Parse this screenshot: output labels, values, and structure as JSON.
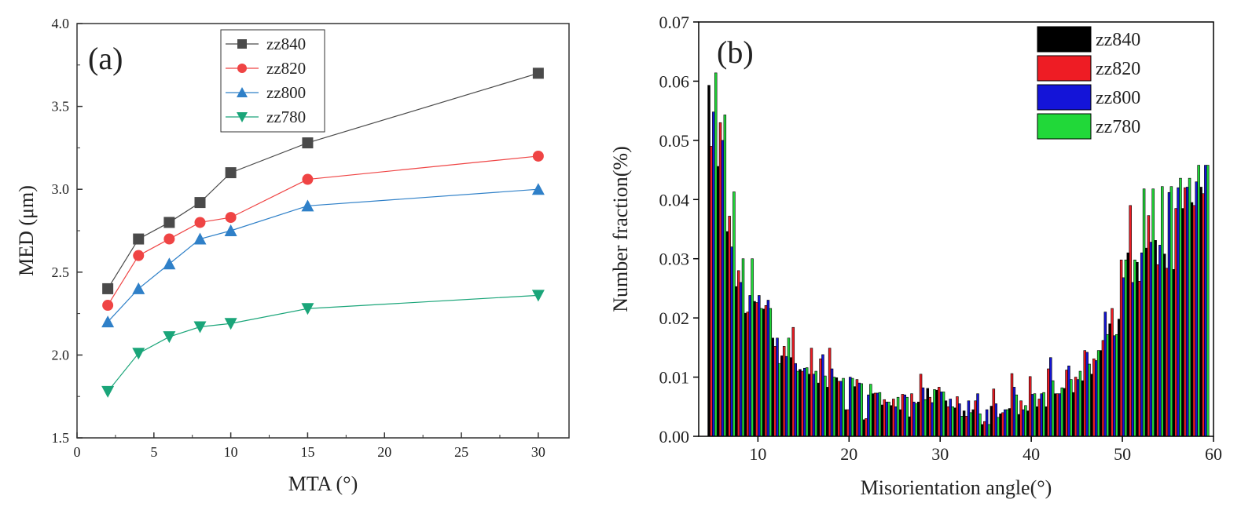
{
  "chart_data": [
    {
      "type": "line",
      "panel_label": "(a)",
      "xlabel": "MTA (°)",
      "ylabel": "MED (μm)",
      "xlim": [
        0,
        32
      ],
      "ylim": [
        1.5,
        4.0
      ],
      "x_ticks": [
        "0",
        "5",
        "10",
        "15",
        "20",
        "25",
        "30"
      ],
      "y_ticks": [
        "1.5",
        "2.0",
        "2.5",
        "3.0",
        "3.5",
        "4.0"
      ],
      "x": [
        2,
        4,
        6,
        8,
        10,
        15,
        30
      ],
      "legend_position": "top-center",
      "grid": false,
      "series": [
        {
          "name": "zz840",
          "marker": "square",
          "color": "#4a4a4a",
          "values": [
            2.4,
            2.7,
            2.8,
            2.92,
            3.1,
            3.28,
            3.7
          ]
        },
        {
          "name": "zz820",
          "marker": "circle",
          "color": "#ef4444",
          "values": [
            2.3,
            2.6,
            2.7,
            2.8,
            2.83,
            3.06,
            3.2
          ]
        },
        {
          "name": "zz800",
          "marker": "triangle-up",
          "color": "#2f80c8",
          "values": [
            2.2,
            2.4,
            2.55,
            2.7,
            2.75,
            2.9,
            3.0
          ]
        },
        {
          "name": "zz780",
          "marker": "triangle-down",
          "color": "#1aa579",
          "values": [
            1.78,
            2.01,
            2.11,
            2.17,
            2.19,
            2.28,
            2.36
          ]
        }
      ]
    },
    {
      "type": "bar",
      "panel_label": "(b)",
      "xlabel": "Misorientation angle(°)",
      "ylabel": "Number fraction(%)",
      "xlim": [
        3.5,
        60
      ],
      "ylim": [
        0,
        0.07
      ],
      "x_ticks": [
        "10",
        "20",
        "30",
        "40",
        "50",
        "60"
      ],
      "y_ticks": [
        "0.00",
        "0.01",
        "0.02",
        "0.03",
        "0.04",
        "0.05",
        "0.06",
        "0.07"
      ],
      "categories": [
        5,
        6,
        7,
        8,
        9,
        10,
        11,
        12,
        13,
        14,
        15,
        16,
        17,
        18,
        19,
        20,
        21,
        22,
        23,
        24,
        25,
        26,
        27,
        28,
        29,
        30,
        31,
        32,
        33,
        34,
        35,
        36,
        37,
        38,
        39,
        40,
        41,
        42,
        43,
        44,
        45,
        46,
        47,
        48,
        49,
        50,
        51,
        52,
        53,
        54,
        55,
        56,
        57,
        58,
        59
      ],
      "legend_position": "top-right",
      "grid": false,
      "series": [
        {
          "name": "zz840",
          "color": "#000000",
          "values": [
            0.0593,
            0.0456,
            0.0346,
            0.0253,
            0.0208,
            0.0228,
            0.0215,
            0.0166,
            0.0136,
            0.0133,
            0.0113,
            0.0105,
            0.009,
            0.0083,
            0.0099,
            0.0045,
            0.0084,
            0.0028,
            0.0072,
            0.0053,
            0.0052,
            0.0045,
            0.0033,
            0.0058,
            0.0081,
            0.0078,
            0.006,
            0.0048,
            0.0043,
            0.0045,
            0.002,
            0.0051,
            0.0038,
            0.0047,
            0.0037,
            0.0043,
            0.005,
            0.005,
            0.0072,
            0.0081,
            0.0074,
            0.0094,
            0.0105,
            0.0145,
            0.019,
            0.0198,
            0.031,
            0.0294,
            0.0318,
            0.0331,
            0.0308,
            0.0282,
            0.0385,
            0.0395,
            0.0421
          ]
        },
        {
          "name": "zz820",
          "color": "#ee1c24",
          "values": [
            0.049,
            0.053,
            0.0372,
            0.028,
            0.021,
            0.0226,
            0.0221,
            0.0152,
            0.0152,
            0.0184,
            0.011,
            0.0149,
            0.0131,
            0.0149,
            0.0093,
            0.0045,
            0.0096,
            0.003,
            0.0073,
            0.0062,
            0.0063,
            0.0071,
            0.0072,
            0.0105,
            0.0066,
            0.0083,
            0.005,
            0.0067,
            0.0034,
            0.006,
            0.0025,
            0.008,
            0.004,
            0.0106,
            0.006,
            0.0101,
            0.0063,
            0.0114,
            0.0072,
            0.0112,
            0.01,
            0.0145,
            0.0131,
            0.0162,
            0.0216,
            0.0298,
            0.039,
            0.0262,
            0.0373,
            0.029,
            0.0284,
            0.0385,
            0.042,
            0.039,
            0.041
          ]
        },
        {
          "name": "zz800",
          "color": "#1414d8",
          "values": [
            0.0548,
            0.05,
            0.032,
            0.026,
            0.0238,
            0.0238,
            0.023,
            0.0166,
            0.0135,
            0.0123,
            0.0115,
            0.0105,
            0.0138,
            0.0114,
            0.0093,
            0.01,
            0.009,
            0.007,
            0.0073,
            0.0058,
            0.005,
            0.007,
            0.0058,
            0.0082,
            0.0057,
            0.0075,
            0.0063,
            0.0055,
            0.006,
            0.0072,
            0.0045,
            0.0055,
            0.0045,
            0.0083,
            0.0045,
            0.0071,
            0.0072,
            0.0133,
            0.0072,
            0.0119,
            0.0096,
            0.0142,
            0.0128,
            0.021,
            0.017,
            0.0268,
            0.026,
            0.031,
            0.0328,
            0.0323,
            0.0412,
            0.042,
            0.0421,
            0.043,
            0.0458
          ]
        },
        {
          "name": "zz780",
          "color": "#21d839",
          "values": [
            0.0614,
            0.0543,
            0.0413,
            0.03,
            0.03,
            0.0216,
            0.0216,
            0.0123,
            0.0166,
            0.011,
            0.0116,
            0.011,
            0.0102,
            0.01,
            0.0098,
            0.0098,
            0.0089,
            0.0088,
            0.0074,
            0.0058,
            0.0066,
            0.0066,
            0.0055,
            0.0062,
            0.0079,
            0.0075,
            0.005,
            0.0034,
            0.004,
            0.0038,
            0.002,
            0.0032,
            0.0045,
            0.007,
            0.0052,
            0.0072,
            0.0074,
            0.0094,
            0.0082,
            0.0096,
            0.011,
            0.0122,
            0.0145,
            0.0172,
            0.0172,
            0.0298,
            0.0298,
            0.0418,
            0.0418,
            0.0422,
            0.0422,
            0.0436,
            0.0436,
            0.0458,
            0.0458
          ]
        }
      ]
    }
  ]
}
